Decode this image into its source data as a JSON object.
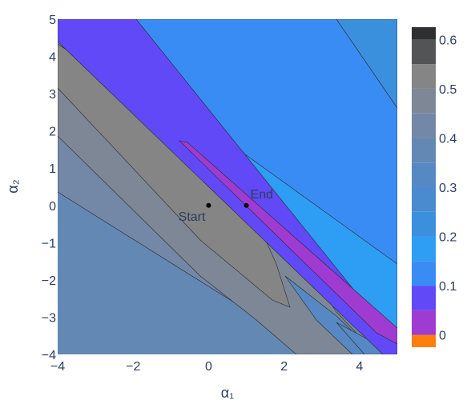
{
  "chart_data": {
    "type": "contour",
    "title": "",
    "xlabel": "α₁",
    "ylabel": "α₂",
    "xlim": [
      -4,
      5
    ],
    "ylim": [
      -4,
      5
    ],
    "x_ticks": [
      "−4",
      "−2",
      "0",
      "2",
      "4"
    ],
    "y_ticks": [
      "−4",
      "−3",
      "−2",
      "−1",
      "0",
      "1",
      "2",
      "3",
      "4",
      "5"
    ],
    "legend": "none",
    "grid": false,
    "points": [
      {
        "label": "Start",
        "x": 0,
        "y": 0
      },
      {
        "label": "End",
        "x": 1,
        "y": 0
      }
    ],
    "colorbar": {
      "range": [
        -0.025,
        0.625
      ],
      "tick_values": [
        0,
        0.1,
        0.2,
        0.3,
        0.4,
        0.5,
        0.6
      ],
      "tick_labels": [
        "0",
        "0.1",
        "0.2",
        "0.3",
        "0.4",
        "0.5",
        "0.6"
      ],
      "level_step": 0.05,
      "colors": [
        "#ff7f0e",
        "#9f3bd1",
        "#6149f7",
        "#3a8cf5",
        "#2e9ef4",
        "#3b90dd",
        "#4a8bd0",
        "#5689c4",
        "#6388b4",
        "#7288a6",
        "#7d8796",
        "#858585",
        "#525455",
        "#2d2f31",
        "#000000"
      ]
    }
  }
}
